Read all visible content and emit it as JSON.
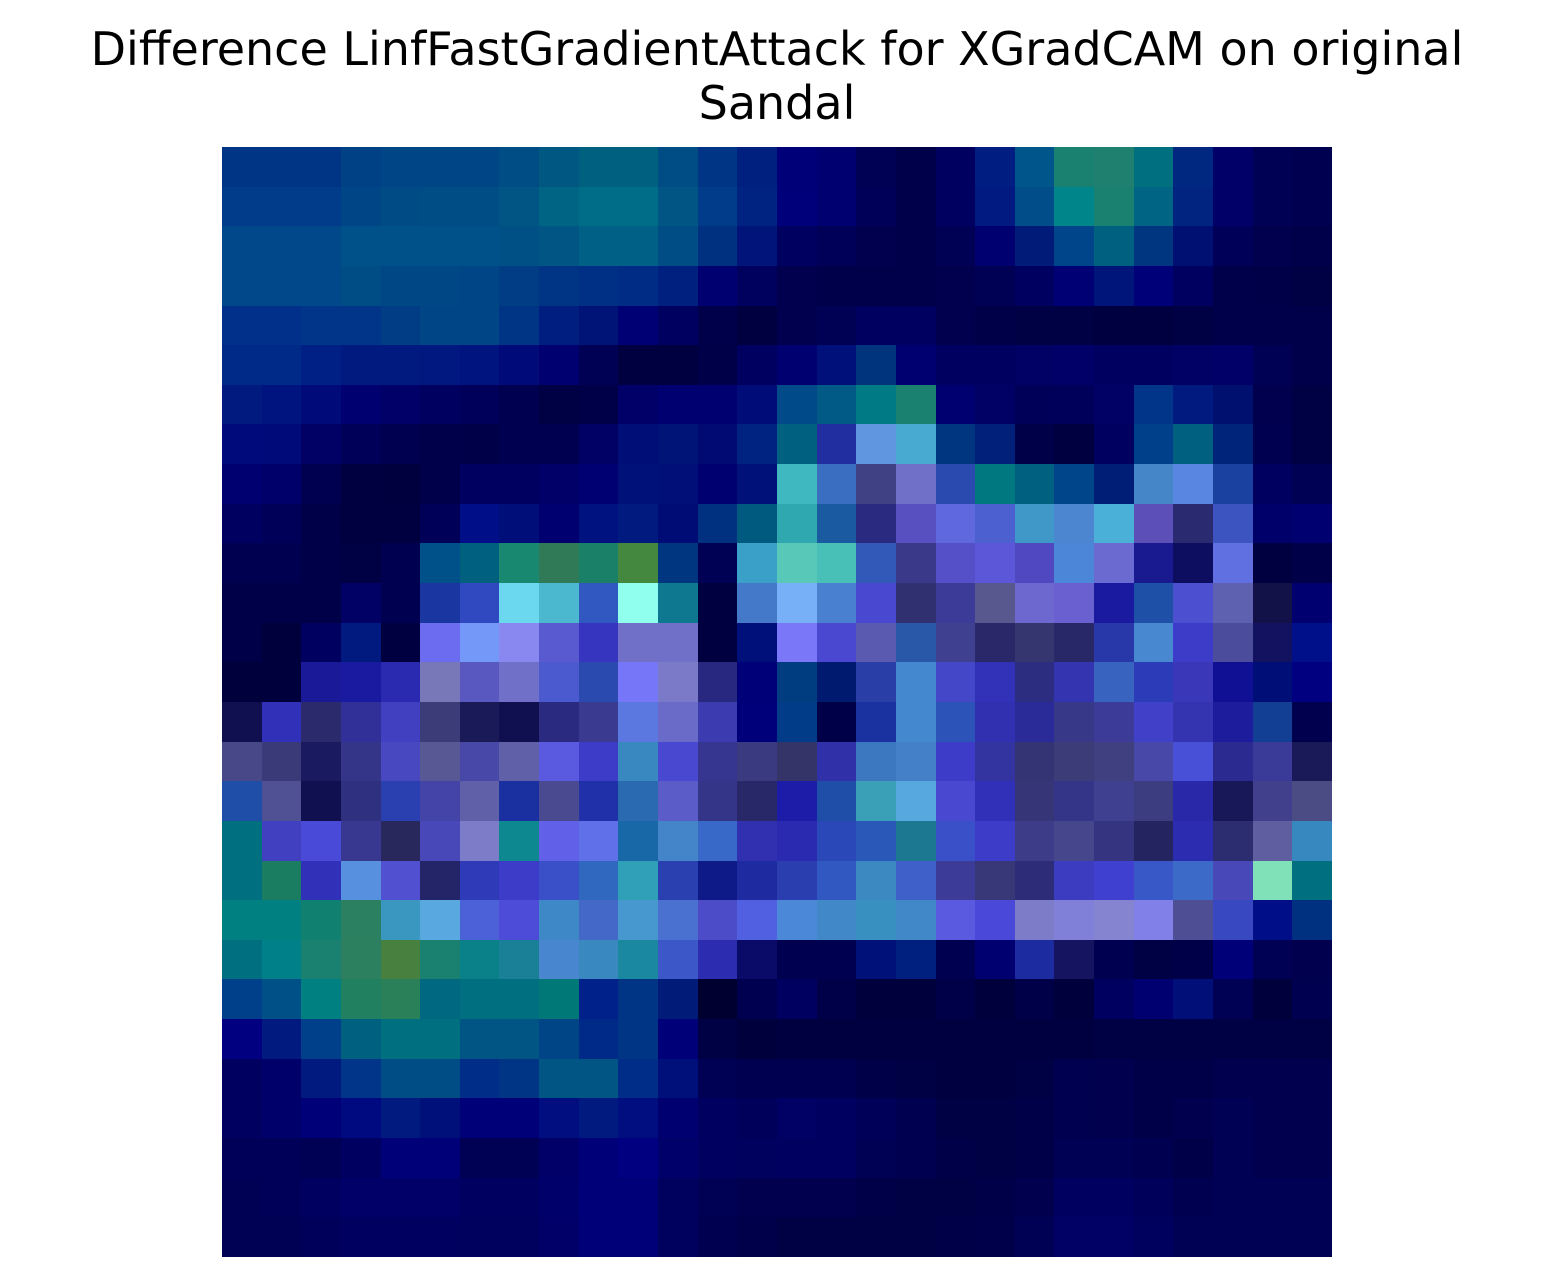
{
  "figure": {
    "title_line1": "Difference LinfFastGradientAttack for XGradCAM on original",
    "title_line2": "Sandal"
  },
  "heatmap": {
    "rows": 28,
    "cols": 28,
    "cells": [
      [
        "#003585",
        "#003585",
        "#003585",
        "#004085",
        "#004585",
        "#004585",
        "#004585",
        "#004d85",
        "#005882",
        "#006080",
        "#006080",
        "#004d85",
        "#003585",
        "#002080",
        "#000078",
        "#000070",
        "#000055",
        "#00004a",
        "#000060",
        "#001e82",
        "#00558a",
        "#1a8070",
        "#208070",
        "#007080",
        "#002880",
        "#000068",
        "#000055",
        "#000050"
      ],
      [
        "#003c8a",
        "#003c8a",
        "#003c8a",
        "#004585",
        "#004a85",
        "#004d85",
        "#004d85",
        "#005585",
        "#006585",
        "#006d88",
        "#006d88",
        "#005585",
        "#003c8a",
        "#002280",
        "#00007a",
        "#000070",
        "#000058",
        "#00004a",
        "#000060",
        "#001a82",
        "#004d8a",
        "#00858a",
        "#1a8070",
        "#006485",
        "#002480",
        "#000068",
        "#000055",
        "#000050"
      ],
      [
        "#00488a",
        "#00488a",
        "#00488a",
        "#00508a",
        "#00508a",
        "#00508a",
        "#00508a",
        "#005085",
        "#005585",
        "#006085",
        "#006085",
        "#004d85",
        "#003080",
        "#00147a",
        "#000060",
        "#000058",
        "#00004e",
        "#00004a",
        "#000055",
        "#000070",
        "#001c78",
        "#00458a",
        "#006080",
        "#003580",
        "#001072",
        "#000058",
        "#00004e",
        "#00004a"
      ],
      [
        "#00488a",
        "#00488a",
        "#00488a",
        "#004d85",
        "#004885",
        "#004885",
        "#004585",
        "#003d85",
        "#003585",
        "#003085",
        "#002c85",
        "#002080",
        "#000070",
        "#00005e",
        "#00004e",
        "#00004a",
        "#00004a",
        "#00004a",
        "#00004e",
        "#000055",
        "#000060",
        "#000075",
        "#00157a",
        "#000078",
        "#000060",
        "#00004a",
        "#000048",
        "#000045"
      ],
      [
        "#00308a",
        "#00308a",
        "#00358a",
        "#00358a",
        "#003d85",
        "#004585",
        "#004585",
        "#003585",
        "#001d80",
        "#001478",
        "#000075",
        "#000060",
        "#00004a",
        "#000040",
        "#00004e",
        "#000055",
        "#000060",
        "#000060",
        "#00004e",
        "#000048",
        "#000045",
        "#000045",
        "#000040",
        "#000040",
        "#000045",
        "#00004a",
        "#00004a",
        "#00004a"
      ],
      [
        "#002a88",
        "#002a88",
        "#002085",
        "#001a80",
        "#001a80",
        "#001880",
        "#001480",
        "#000a78",
        "#000070",
        "#000055",
        "#000040",
        "#000040",
        "#000048",
        "#000060",
        "#000070",
        "#00107a",
        "#00357d",
        "#000070",
        "#000060",
        "#000060",
        "#000065",
        "#000068",
        "#000060",
        "#000060",
        "#000065",
        "#000068",
        "#000055",
        "#00004a"
      ],
      [
        "#001a80",
        "#001480",
        "#000a78",
        "#000070",
        "#000068",
        "#000060",
        "#00005a",
        "#000050",
        "#000045",
        "#000048",
        "#000068",
        "#000070",
        "#000070",
        "#000c78",
        "#004a8a",
        "#005a85",
        "#007a85",
        "#1a8070",
        "#000070",
        "#000065",
        "#000058",
        "#00005a",
        "#000065",
        "#00358a",
        "#001a80",
        "#00106e",
        "#00004e",
        "#000045"
      ],
      [
        "#000a7a",
        "#000a78",
        "#000065",
        "#000058",
        "#000050",
        "#00004a",
        "#000048",
        "#000050",
        "#000050",
        "#000065",
        "#000e78",
        "#001478",
        "#000a72",
        "#002280",
        "#006080",
        "#202ea0",
        "#6096e0",
        "#48aad0",
        "#003580",
        "#00207a",
        "#000048",
        "#000040",
        "#000060",
        "#00408a",
        "#006080",
        "#00247a",
        "#000050",
        "#000045"
      ],
      [
        "#000070",
        "#00006a",
        "#000050",
        "#000040",
        "#00003f",
        "#00004a",
        "#000060",
        "#000060",
        "#000068",
        "#000072",
        "#00127a",
        "#001078",
        "#000070",
        "#00127a",
        "#40b8c0",
        "#3a6ec0",
        "#404085",
        "#7070c8",
        "#2a4ab0",
        "#007880",
        "#006080",
        "#00458a",
        "#001e75",
        "#4486c8",
        "#5886e0",
        "#1a40a0",
        "#000060",
        "#000055"
      ],
      [
        "#000060",
        "#000058",
        "#000048",
        "#000040",
        "#000040",
        "#000058",
        "#000e88",
        "#000e7a",
        "#000070",
        "#001280",
        "#001a80",
        "#000c75",
        "#003080",
        "#005a80",
        "#30a8b0",
        "#1a5aa0",
        "#2a2a80",
        "#5850c0",
        "#6068e0",
        "#4c60d0",
        "#4098c8",
        "#4c86d0",
        "#4ab0d8",
        "#5c50b8",
        "#2a2a70",
        "#3c54c0",
        "#00006a",
        "#000070"
      ],
      [
        "#000050",
        "#000050",
        "#000048",
        "#000045",
        "#000050",
        "#00508a",
        "#006080",
        "#188870",
        "#307a58",
        "#1a8068",
        "#448840",
        "#003580",
        "#000055",
        "#3aa0c8",
        "#58c8b8",
        "#48c0b8",
        "#3258b8",
        "#3a3888",
        "#5650c8",
        "#5c56d8",
        "#5048c0",
        "#4c86d8",
        "#6a6ad0",
        "#1a1a90",
        "#0e0e60",
        "#6070e0",
        "#000040",
        "#000048"
      ],
      [
        "#000048",
        "#000048",
        "#000048",
        "#000065",
        "#000050",
        "#1a36a0",
        "#3048c0",
        "#6cd8f0",
        "#4cb8d0",
        "#3058c0",
        "#90ffee",
        "#0e7890",
        "#000040",
        "#4478c8",
        "#78b0f8",
        "#4a80d0",
        "#4848d0",
        "#303070",
        "#3c3c98",
        "#58588e",
        "#6c68d0",
        "#6a60d0",
        "#1a1aa0",
        "#1e50a8",
        "#4c50d0",
        "#5e60b0",
        "#121248",
        "#000070"
      ],
      [
        "#000048",
        "#00003c",
        "#000060",
        "#001a80",
        "#000040",
        "#6c6cf0",
        "#7498f8",
        "#8888f0",
        "#5a5ad0",
        "#3535c0",
        "#7070c8",
        "#7070c8",
        "#000040",
        "#00107a",
        "#7a78f8",
        "#4a48d0",
        "#5a5ab0",
        "#2a58a8",
        "#404090",
        "#2a2868",
        "#353570",
        "#282868",
        "#2838a8",
        "#4888d0",
        "#3c3cc8",
        "#4c4c9c",
        "#121260",
        "#00108a"
      ],
      [
        "#00003c",
        "#00003c",
        "#1a1a98",
        "#1a1aa0",
        "#2a2ab0",
        "#7878b8",
        "#5858c0",
        "#7070c8",
        "#4c5ad0",
        "#2a4ab0",
        "#7676f8",
        "#7a7ac8",
        "#282880",
        "#000078",
        "#003c80",
        "#001a70",
        "#2a3ea8",
        "#4488d0",
        "#4448c8",
        "#3232b8",
        "#2c2c80",
        "#3434b0",
        "#3864c0",
        "#2c3cb8",
        "#3a38b8",
        "#101095",
        "#000e78",
        "#000080"
      ],
      [
        "#101050",
        "#3030b8",
        "#2a2a6c",
        "#303098",
        "#4040c0",
        "#3c3c78",
        "#1a1a58",
        "#101050",
        "#2a2a80",
        "#3a3a90",
        "#5a78e0",
        "#6a6ac8",
        "#3c3cb0",
        "#00007a",
        "#003c88",
        "#000048",
        "#1a32a0",
        "#4488d0",
        "#2c54b8",
        "#3030b0",
        "#2a2a98",
        "#383888",
        "#3c3c98",
        "#4040c8",
        "#3434b0",
        "#1c1c9c",
        "#123e94",
        "#00004e"
      ],
      [
        "#484888",
        "#3a3a78",
        "#1a1a60",
        "#343488",
        "#4848c0",
        "#585894",
        "#4848a8",
        "#6060a8",
        "#5a5ae0",
        "#3c3cc8",
        "#3a88c0",
        "#4848d0",
        "#363690",
        "#3a3a80",
        "#343468",
        "#3030a8",
        "#3c78c0",
        "#4480c8",
        "#3c3cc8",
        "#3434a0",
        "#343474",
        "#3c3c78",
        "#404080",
        "#4848a8",
        "#4850d8",
        "#2a2a90",
        "#3a3a98",
        "#1a1a58"
      ],
      [
        "#1e4ea8",
        "#505094",
        "#101050",
        "#303080",
        "#2a40b0",
        "#4444a8",
        "#6060a8",
        "#1a30a0",
        "#4a4a90",
        "#2030a8",
        "#2a6ab0",
        "#5c5cc8",
        "#343488",
        "#282868",
        "#1c1ca8",
        "#1e4ea8",
        "#3aa0b8",
        "#58a8e0",
        "#4848d0",
        "#3030b8",
        "#353578",
        "#343488",
        "#404090",
        "#3c3c80",
        "#2828a8",
        "#181858",
        "#40408c",
        "#4c4c84"
      ],
      [
        "#007080",
        "#4040c0",
        "#4a4ad8",
        "#383890",
        "#28285c",
        "#4848b8",
        "#7c7cc8",
        "#0e8890",
        "#6060e8",
        "#6070e8",
        "#1868a8",
        "#4484c8",
        "#3868c8",
        "#3030b0",
        "#2a2ab0",
        "#2a48b8",
        "#2a58b8",
        "#1c7890",
        "#3a50c8",
        "#3c3cc8",
        "#3c3c88",
        "#46468c",
        "#343480",
        "#242460",
        "#2c2cb0",
        "#2c2c70",
        "#5e5ea0",
        "#3888c0"
      ],
      [
        "#007080",
        "#1a7c60",
        "#3030b8",
        "#5890e0",
        "#5050d0",
        "#242468",
        "#2e3ab8",
        "#3c3cc8",
        "#3a50c8",
        "#3068c0",
        "#30a0b8",
        "#2a40b0",
        "#0e1a88",
        "#1e2aa0",
        "#2a3eb0",
        "#3058c0",
        "#3c88c0",
        "#3e60c8",
        "#3c3c98",
        "#383878",
        "#2c2c78",
        "#3c3cc0",
        "#4040d0",
        "#3858c8",
        "#3c6ac8",
        "#4848b8",
        "#80e0b8",
        "#007080"
      ],
      [
        "#008080",
        "#008080",
        "#108070",
        "#2a8060",
        "#3a98c0",
        "#5aa8e0",
        "#4c60d8",
        "#4c4cd8",
        "#3e88c8",
        "#4468c8",
        "#4898d0",
        "#4a70d0",
        "#4c4cc8",
        "#5060e0",
        "#4c88d8",
        "#4088c8",
        "#3890c0",
        "#4088c8",
        "#5a5ae0",
        "#4a48d8",
        "#7c7cc8",
        "#8080d8",
        "#8484d0",
        "#8080e8",
        "#4e4e94",
        "#3848c0",
        "#000e88",
        "#003080"
      ],
      [
        "#007080",
        "#008088",
        "#1a8070",
        "#2c8060",
        "#488040",
        "#1a8070",
        "#0a8088",
        "#1a8098",
        "#4886d0",
        "#3a88c0",
        "#1a88a0",
        "#3c58c8",
        "#2c2cb0",
        "#0a0a68",
        "#000050",
        "#000050",
        "#00127a",
        "#002080",
        "#000050",
        "#000070",
        "#1c2ca0",
        "#141460",
        "#000050",
        "#000045",
        "#000048",
        "#000078",
        "#000055",
        "#00004e"
      ],
      [
        "#00408a",
        "#005088",
        "#008080",
        "#208060",
        "#2a8058",
        "#006880",
        "#007080",
        "#007080",
        "#007878",
        "#00208a",
        "#003585",
        "#001c78",
        "#000030",
        "#000050",
        "#000060",
        "#000048",
        "#00003c",
        "#00003c",
        "#000048",
        "#00003c",
        "#000048",
        "#00003c",
        "#000060",
        "#000070",
        "#001078",
        "#000055",
        "#00003c",
        "#000050"
      ],
      [
        "#000080",
        "#001a80",
        "#00408a",
        "#006080",
        "#007080",
        "#007080",
        "#005585",
        "#005585",
        "#004585",
        "#002a88",
        "#003585",
        "#000078",
        "#000045",
        "#00003c",
        "#000040",
        "#000040",
        "#000040",
        "#000040",
        "#000040",
        "#000040",
        "#000040",
        "#000040",
        "#000045",
        "#000045",
        "#000045",
        "#000045",
        "#000045",
        "#000045"
      ],
      [
        "#000060",
        "#00006a",
        "#001a80",
        "#00358a",
        "#004d85",
        "#004d85",
        "#002d88",
        "#003585",
        "#005585",
        "#005585",
        "#002d88",
        "#00107a",
        "#000055",
        "#000050",
        "#000050",
        "#000050",
        "#000048",
        "#000045",
        "#000040",
        "#000040",
        "#000045",
        "#000050",
        "#00004e",
        "#000048",
        "#000048",
        "#00004e",
        "#00004e",
        "#00004e"
      ],
      [
        "#000060",
        "#00006a",
        "#000078",
        "#000a80",
        "#001a80",
        "#00107a",
        "#000078",
        "#000078",
        "#000e80",
        "#001a80",
        "#000e80",
        "#000070",
        "#000060",
        "#00005a",
        "#000065",
        "#000060",
        "#000058",
        "#000050",
        "#000045",
        "#000045",
        "#000048",
        "#000050",
        "#00004e",
        "#000048",
        "#00004e",
        "#000055",
        "#00004e",
        "#00004e"
      ],
      [
        "#000058",
        "#000058",
        "#000055",
        "#000060",
        "#000078",
        "#000078",
        "#000055",
        "#000055",
        "#000068",
        "#000078",
        "#000080",
        "#00006a",
        "#000060",
        "#00005e",
        "#000060",
        "#000060",
        "#000055",
        "#000050",
        "#000048",
        "#000045",
        "#000048",
        "#000055",
        "#000055",
        "#000050",
        "#000048",
        "#000055",
        "#00004e",
        "#00004e"
      ],
      [
        "#000055",
        "#000058",
        "#000060",
        "#000068",
        "#000068",
        "#000068",
        "#000060",
        "#000060",
        "#00006a",
        "#000078",
        "#000078",
        "#00005e",
        "#000055",
        "#00004e",
        "#00004e",
        "#00004e",
        "#000048",
        "#000045",
        "#000045",
        "#000048",
        "#00004e",
        "#000060",
        "#000060",
        "#00005a",
        "#000050",
        "#000055",
        "#000055",
        "#000055"
      ],
      [
        "#000055",
        "#000055",
        "#00005a",
        "#000060",
        "#000060",
        "#000060",
        "#00005e",
        "#00005e",
        "#000068",
        "#000078",
        "#000078",
        "#00005e",
        "#000050",
        "#00004a",
        "#000045",
        "#000045",
        "#000045",
        "#000045",
        "#000048",
        "#00004a",
        "#000055",
        "#000065",
        "#000065",
        "#00005e",
        "#000055",
        "#000055",
        "#000055",
        "#000055"
      ]
    ]
  }
}
